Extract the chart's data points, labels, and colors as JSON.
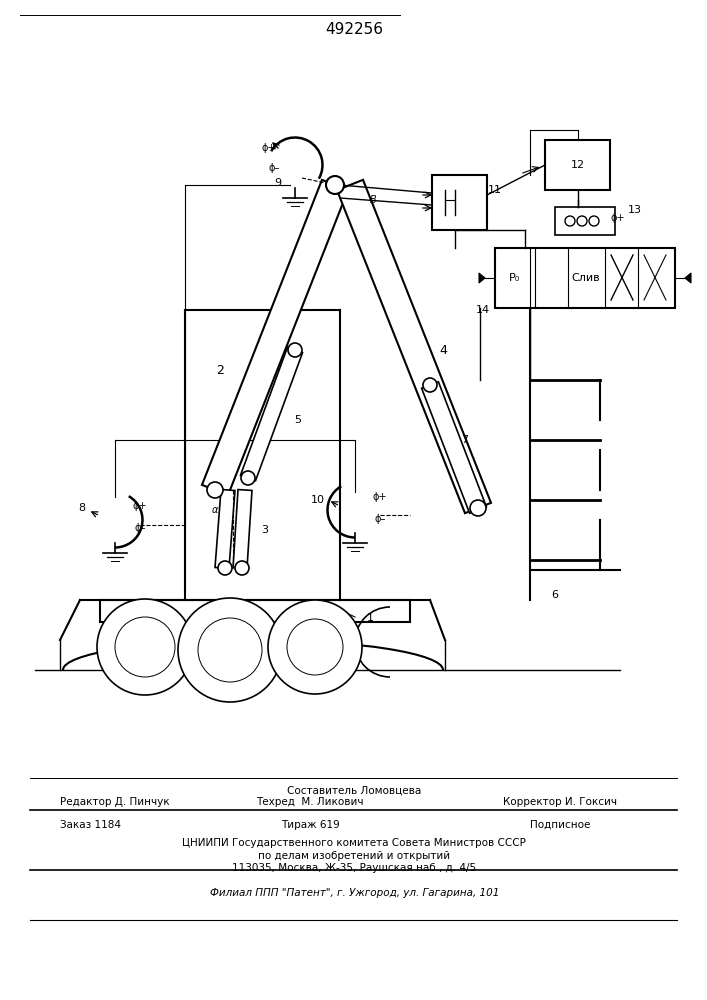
{
  "patent_number": "492256",
  "bg_color": "#ffffff",
  "line_color": "#000000",
  "fig_width": 7.07,
  "fig_height": 10.0,
  "footer_line1_sestavitel": "Составитель Ломовцева",
  "footer_line1_left": "Редактор Д. Пинчук",
  "footer_line1_center": "Техред  М. Ликович",
  "footer_line1_right": "Корректор И. Гоксич",
  "footer_line2_left": "Заказ 1184",
  "footer_line2_center": "Тираж 619",
  "footer_line2_right": "Подписное",
  "footer_line3": "ЦНИИПИ Государственного комитета Совета Министров СССР",
  "footer_line4": "по делам изобретений и открытий",
  "footer_line5": "113035, Москва, Ж-35, Раушская наб., д. 4/5",
  "footer_line6": "Филиал ППП \"Патент\", г. Ужгород, ул. Гагарина, 101"
}
